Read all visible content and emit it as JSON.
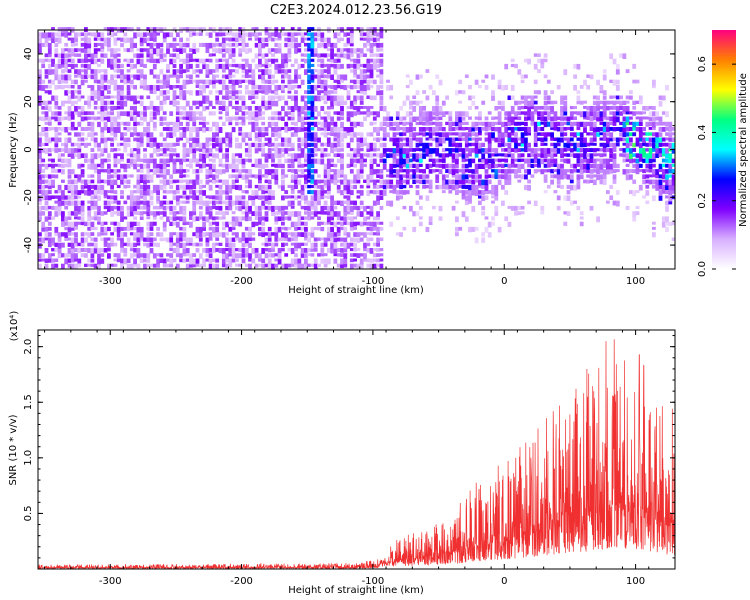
{
  "title": "C2E3.2024.012.23.56.G19",
  "chart_data": [
    {
      "type": "heatmap",
      "xlabel": "Height of straight line (km)",
      "ylabel": "Frequency (Hz)",
      "xlim": [
        -355,
        130
      ],
      "ylim": [
        -50,
        50
      ],
      "xticks": [
        -300,
        -200,
        -100,
        0,
        100
      ],
      "yticks": [
        -40,
        -20,
        0,
        20,
        40
      ],
      "colorbar": {
        "label": "Normalized spectral amplitude",
        "range": [
          0.0,
          0.7
        ],
        "ticks": [
          0.0,
          0.2,
          0.4,
          0.6
        ],
        "colors": [
          "#ffffff",
          "#d8b0ff",
          "#8000ff",
          "#0000ff",
          "#00ffff",
          "#00ff80",
          "#ffff00",
          "#ff8000",
          "#ff0080"
        ]
      },
      "regions": [
        {
          "x": [
            -355,
            -95
          ],
          "freq": [
            -50,
            50
          ],
          "amplitude": 0.12,
          "note": "broadband noise"
        },
        {
          "x": [
            -150,
            -147
          ],
          "freq": [
            -20,
            50
          ],
          "amplitude": 0.3,
          "note": "vertical stripe"
        },
        {
          "x": [
            -95,
            130
          ],
          "freq": [
            -15,
            15
          ],
          "amplitude": 0.3,
          "note": "signal band near 0 Hz"
        },
        {
          "x": [
            90,
            130
          ],
          "freq": [
            -8,
            8
          ],
          "amplitude": 0.42,
          "note": "strongest signal"
        }
      ]
    },
    {
      "type": "line",
      "xlabel": "Height of straight line (km)",
      "ylabel": "SNR (10 * v/v)",
      "yexponent": "(x10⁴)",
      "xlim": [
        -355,
        130
      ],
      "ylim": [
        0,
        2.15
      ],
      "xticks": [
        -300,
        -200,
        -100,
        0,
        100
      ],
      "yticks": [
        0.5,
        1.0,
        1.5,
        2.0
      ],
      "yticklabels": [
        "0.5",
        "1.0",
        "1.5",
        "2.0"
      ],
      "color": "#f03030",
      "envelope": {
        "x": [
          -355,
          -150,
          -110,
          -95,
          -80,
          -60,
          -40,
          -20,
          0,
          20,
          40,
          60,
          80,
          100,
          120,
          130
        ],
        "max": [
          0.04,
          0.05,
          0.06,
          0.1,
          0.3,
          0.35,
          0.5,
          0.8,
          1.0,
          1.2,
          1.5,
          1.75,
          2.1,
          2.0,
          1.5,
          1.5
        ]
      }
    }
  ]
}
